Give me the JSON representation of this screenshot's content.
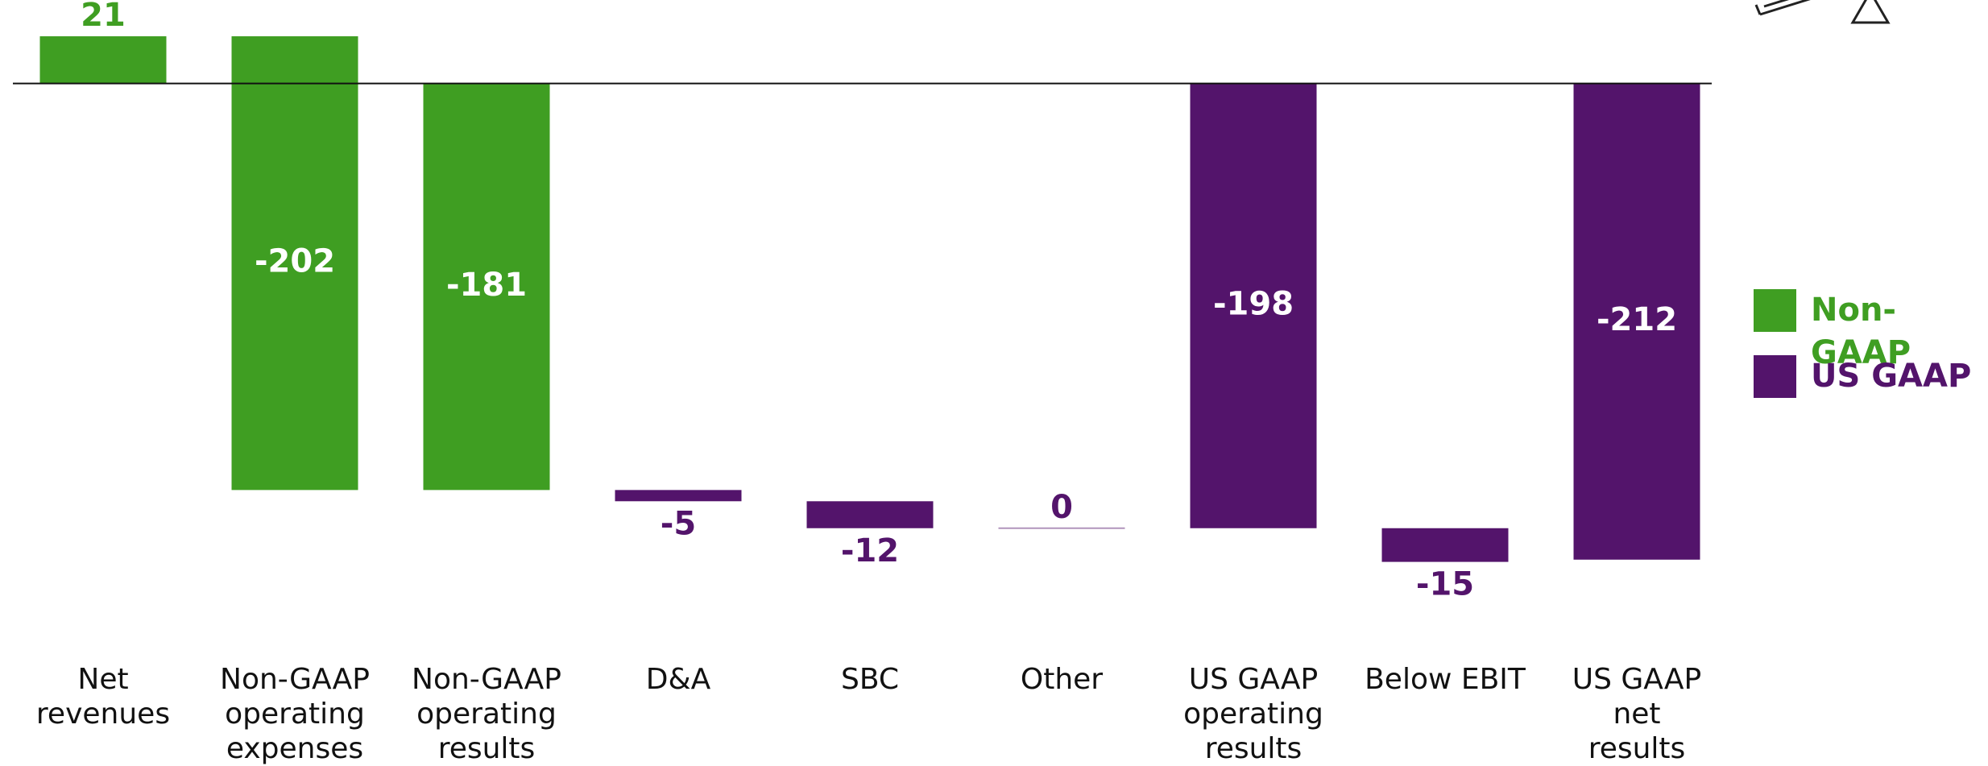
{
  "chart_data": {
    "type": "waterfall",
    "categories": [
      "Net revenues",
      "Non-GAAP\noperating\nexpenses",
      "Non-GAAP\noperating\nresults",
      "D&A",
      "SBC",
      "Other",
      "US GAAP\noperating\nresults",
      "Below EBIT",
      "US GAAP\nnet\nresults"
    ],
    "is_total": [
      false,
      false,
      true,
      false,
      false,
      false,
      true,
      false,
      true
    ],
    "series": [
      {
        "name": "Non-GAAP",
        "color": "#3f9e22",
        "values": [
          21,
          -202,
          -181,
          null,
          null,
          null,
          null,
          null,
          null
        ]
      },
      {
        "name": "US GAAP",
        "color": "#53146b",
        "values": [
          null,
          null,
          null,
          -5,
          -12,
          0,
          -198,
          -15,
          -212
        ]
      }
    ],
    "ylim": [
      -230,
      35
    ]
  }
}
